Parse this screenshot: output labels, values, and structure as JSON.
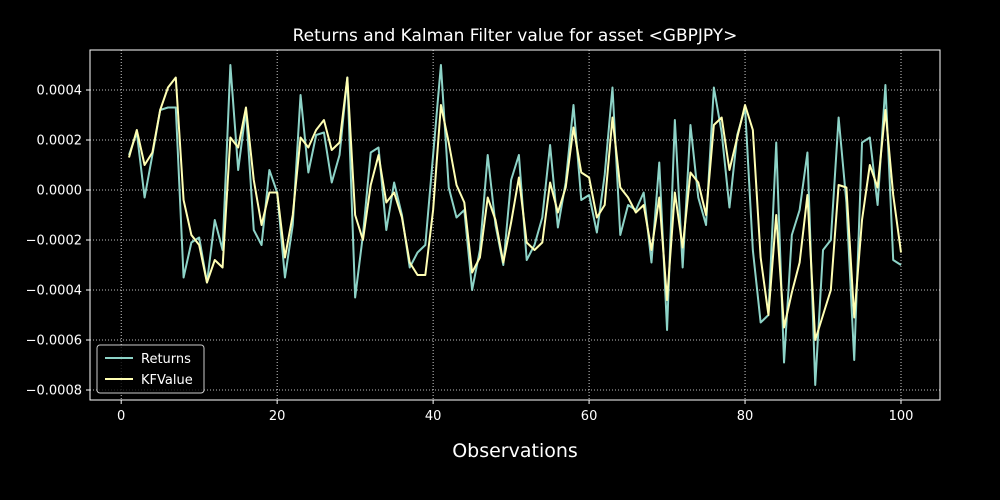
{
  "chart_data": {
    "type": "line",
    "title": "Returns and Kalman Filter value for asset <GBPJPY>",
    "xlabel": "Observations",
    "ylabel": "",
    "xlim": [
      -4,
      105
    ],
    "ylim": [
      -0.00084,
      0.00056
    ],
    "xticks": [
      0,
      20,
      40,
      60,
      80,
      100
    ],
    "yticks": [
      -0.0008,
      -0.0006,
      -0.0004,
      -0.0002,
      0.0,
      0.0002,
      0.0004
    ],
    "xtick_labels": [
      "0",
      "20",
      "40",
      "60",
      "80",
      "100"
    ],
    "ytick_labels": [
      "−0.0008",
      "−0.0006",
      "−0.0004",
      "−0.0002",
      "0.0000",
      "0.0002",
      "0.0004"
    ],
    "grid": true,
    "legend_position": "lower-left",
    "background": "#000000",
    "x": [
      1,
      2,
      3,
      4,
      5,
      6,
      7,
      8,
      9,
      10,
      11,
      12,
      13,
      14,
      15,
      16,
      17,
      18,
      19,
      20,
      21,
      22,
      23,
      24,
      25,
      26,
      27,
      28,
      29,
      30,
      31,
      32,
      33,
      34,
      35,
      36,
      37,
      38,
      39,
      40,
      41,
      42,
      43,
      44,
      45,
      46,
      47,
      48,
      49,
      50,
      51,
      52,
      53,
      54,
      55,
      56,
      57,
      58,
      59,
      60,
      61,
      62,
      63,
      64,
      65,
      66,
      67,
      68,
      69,
      70,
      71,
      72,
      73,
      74,
      75,
      76,
      77,
      78,
      79,
      80,
      81,
      82,
      83,
      84,
      85,
      86,
      87,
      88,
      89,
      90,
      91,
      92,
      93,
      94,
      95,
      96,
      97,
      98,
      99,
      100
    ],
    "series": [
      {
        "name": "Returns",
        "color": "#8dd3c7",
        "values": [
          0.00014,
          0.00023,
          -3e-05,
          0.00014,
          0.00032,
          0.00033,
          0.00033,
          -0.00035,
          -0.00021,
          -0.00019,
          -0.00037,
          -0.00012,
          -0.00024,
          0.0005,
          8e-05,
          0.00032,
          -0.00016,
          -0.00022,
          8e-05,
          -1e-05,
          -0.00035,
          -0.00014,
          0.00038,
          7e-05,
          0.00022,
          0.00023,
          3e-05,
          0.00014,
          0.00045,
          -0.00043,
          -0.00018,
          0.00015,
          0.00017,
          -0.00016,
          3e-05,
          -0.0001,
          -0.00031,
          -0.00025,
          -0.00022,
          0.00014,
          0.0005,
          1e-05,
          -0.00011,
          -8e-05,
          -0.0004,
          -0.00024,
          0.00014,
          -0.00014,
          -0.0003,
          4e-05,
          0.00014,
          -0.00028,
          -0.00022,
          -0.00011,
          0.00018,
          -0.00015,
          3e-05,
          0.00034,
          -4e-05,
          -2e-05,
          -0.00017,
          6e-05,
          0.00041,
          -0.00018,
          -6e-05,
          -8e-05,
          -1e-05,
          -0.00029,
          0.00011,
          -0.00056,
          0.00028,
          -0.00031,
          0.00026,
          -3e-05,
          -0.00014,
          0.00041,
          0.00023,
          -7e-05,
          0.00022,
          0.00033,
          -0.00024,
          -0.00053,
          -0.0005,
          0.00019,
          -0.00069,
          -0.00018,
          -8e-05,
          0.00015,
          -0.00078,
          -0.00024,
          -0.0002,
          0.00029,
          -5e-05,
          -0.00068,
          0.00019,
          0.00021,
          -6e-05,
          0.00042,
          -0.00028,
          -0.0003
        ]
      },
      {
        "name": "KFValue",
        "color": "#ffffb3",
        "values": [
          0.00013,
          0.00024,
          0.0001,
          0.00015,
          0.00032,
          0.00041,
          0.00045,
          -4e-05,
          -0.00018,
          -0.00022,
          -0.00037,
          -0.00028,
          -0.00031,
          0.00021,
          0.00017,
          0.00033,
          4e-05,
          -0.00014,
          -1e-05,
          -1e-05,
          -0.00027,
          -0.0001,
          0.00021,
          0.00017,
          0.00024,
          0.00028,
          0.00016,
          0.00019,
          0.00045,
          -0.0001,
          -0.0002,
          2e-05,
          0.00014,
          -5e-05,
          -1e-05,
          -0.00011,
          -0.00029,
          -0.00034,
          -0.00034,
          -8e-05,
          0.00034,
          0.00019,
          2e-05,
          -5e-05,
          -0.00033,
          -0.00027,
          -3e-05,
          -0.00012,
          -0.00029,
          -0.00013,
          5e-05,
          -0.00021,
          -0.00024,
          -0.00021,
          3e-05,
          -9e-05,
          1e-05,
          0.00025,
          7e-05,
          5e-05,
          -0.00011,
          -6e-05,
          0.00029,
          1e-05,
          -3e-05,
          -9e-05,
          -6e-05,
          -0.00024,
          -3e-05,
          -0.00044,
          -1e-05,
          -0.00023,
          7e-05,
          3e-05,
          -0.0001,
          0.00026,
          0.00029,
          8e-05,
          0.00021,
          0.00034,
          0.00024,
          -0.00027,
          -0.0005,
          -0.0001,
          -0.00055,
          -0.00041,
          -0.00029,
          -2e-05,
          -0.0006,
          -0.0005,
          -0.0004,
          2e-05,
          1e-05,
          -0.00051,
          -0.00012,
          0.0001,
          1e-05,
          0.00032,
          -2e-05,
          -0.00025
        ]
      }
    ]
  }
}
